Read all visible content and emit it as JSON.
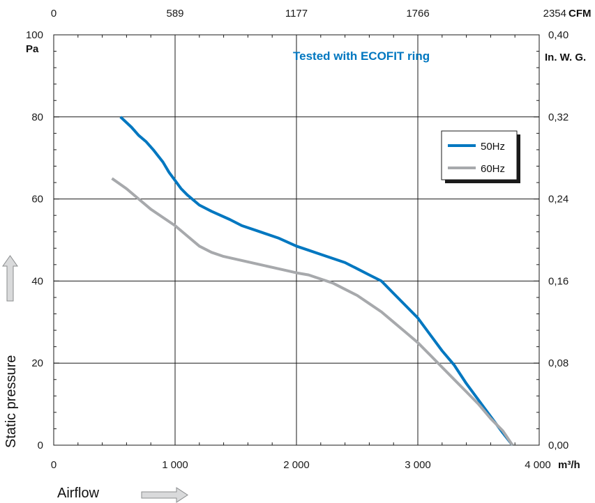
{
  "chart_data": {
    "type": "line",
    "annotation": "Tested with ECOFIT ring",
    "xlabel": "Airflow",
    "ylabel": "Static pressure",
    "x_unit": "m³/h",
    "y_unit": "Pa",
    "xlim": [
      0,
      4000
    ],
    "ylim": [
      0,
      100
    ],
    "x_ticks": [
      0,
      1000,
      2000,
      3000,
      4000
    ],
    "x_tick_labels": [
      "0",
      "1 000",
      "2 000",
      "3 000",
      "4 000"
    ],
    "y_ticks": [
      0,
      20,
      40,
      60,
      80,
      100
    ],
    "y_tick_labels": [
      "0",
      "20",
      "40",
      "60",
      "80",
      "100"
    ],
    "top_axis": {
      "unit": "CFM",
      "ticks": [
        0,
        1000,
        2000,
        3000,
        4000
      ],
      "labels": [
        "0",
        "589",
        "1177",
        "1766",
        "2354"
      ]
    },
    "right_axis": {
      "unit": "In. W. G.",
      "ticks": [
        0,
        20,
        40,
        60,
        80,
        100
      ],
      "labels": [
        "0,00",
        "0,08",
        "0,16",
        "0,24",
        "0,32",
        "0,40"
      ]
    },
    "grid": true,
    "legend_position": "top-right",
    "series": [
      {
        "name": "50Hz",
        "color": "#0077c0",
        "points": [
          [
            550,
            80
          ],
          [
            640,
            77.5
          ],
          [
            700,
            75.5
          ],
          [
            760,
            74
          ],
          [
            820,
            72
          ],
          [
            900,
            69
          ],
          [
            950,
            66.5
          ],
          [
            1000,
            64.5
          ],
          [
            1050,
            62.5
          ],
          [
            1100,
            61
          ],
          [
            1200,
            58.5
          ],
          [
            1300,
            57
          ],
          [
            1450,
            55
          ],
          [
            1550,
            53.5
          ],
          [
            1700,
            52
          ],
          [
            1850,
            50.5
          ],
          [
            2000,
            48.5
          ],
          [
            2100,
            47.5
          ],
          [
            2200,
            46.5
          ],
          [
            2300,
            45.5
          ],
          [
            2400,
            44.5
          ],
          [
            2500,
            43
          ],
          [
            2600,
            41.5
          ],
          [
            2700,
            40
          ],
          [
            2800,
            37
          ],
          [
            3000,
            31
          ],
          [
            3100,
            27
          ],
          [
            3200,
            23
          ],
          [
            3300,
            19.5
          ],
          [
            3400,
            15
          ],
          [
            3550,
            9
          ],
          [
            3700,
            3
          ],
          [
            3780,
            0
          ]
        ]
      },
      {
        "name": "60Hz",
        "color": "#a7a9ac",
        "points": [
          [
            480,
            65
          ],
          [
            600,
            62.5
          ],
          [
            700,
            60
          ],
          [
            800,
            57.5
          ],
          [
            900,
            55.5
          ],
          [
            1000,
            53.5
          ],
          [
            1100,
            51
          ],
          [
            1200,
            48.5
          ],
          [
            1300,
            47
          ],
          [
            1400,
            46
          ],
          [
            1550,
            45
          ],
          [
            1700,
            44
          ],
          [
            1850,
            43
          ],
          [
            2000,
            42
          ],
          [
            2100,
            41.5
          ],
          [
            2200,
            40.5
          ],
          [
            2300,
            39.5
          ],
          [
            2400,
            38
          ],
          [
            2500,
            36.5
          ],
          [
            2600,
            34.5
          ],
          [
            2700,
            32.5
          ],
          [
            2800,
            30
          ],
          [
            2900,
            27.5
          ],
          [
            3000,
            25
          ],
          [
            3100,
            22
          ],
          [
            3200,
            19
          ],
          [
            3300,
            16
          ],
          [
            3400,
            13
          ],
          [
            3500,
            10
          ],
          [
            3600,
            6.5
          ],
          [
            3700,
            3.5
          ],
          [
            3780,
            0
          ]
        ]
      }
    ]
  }
}
